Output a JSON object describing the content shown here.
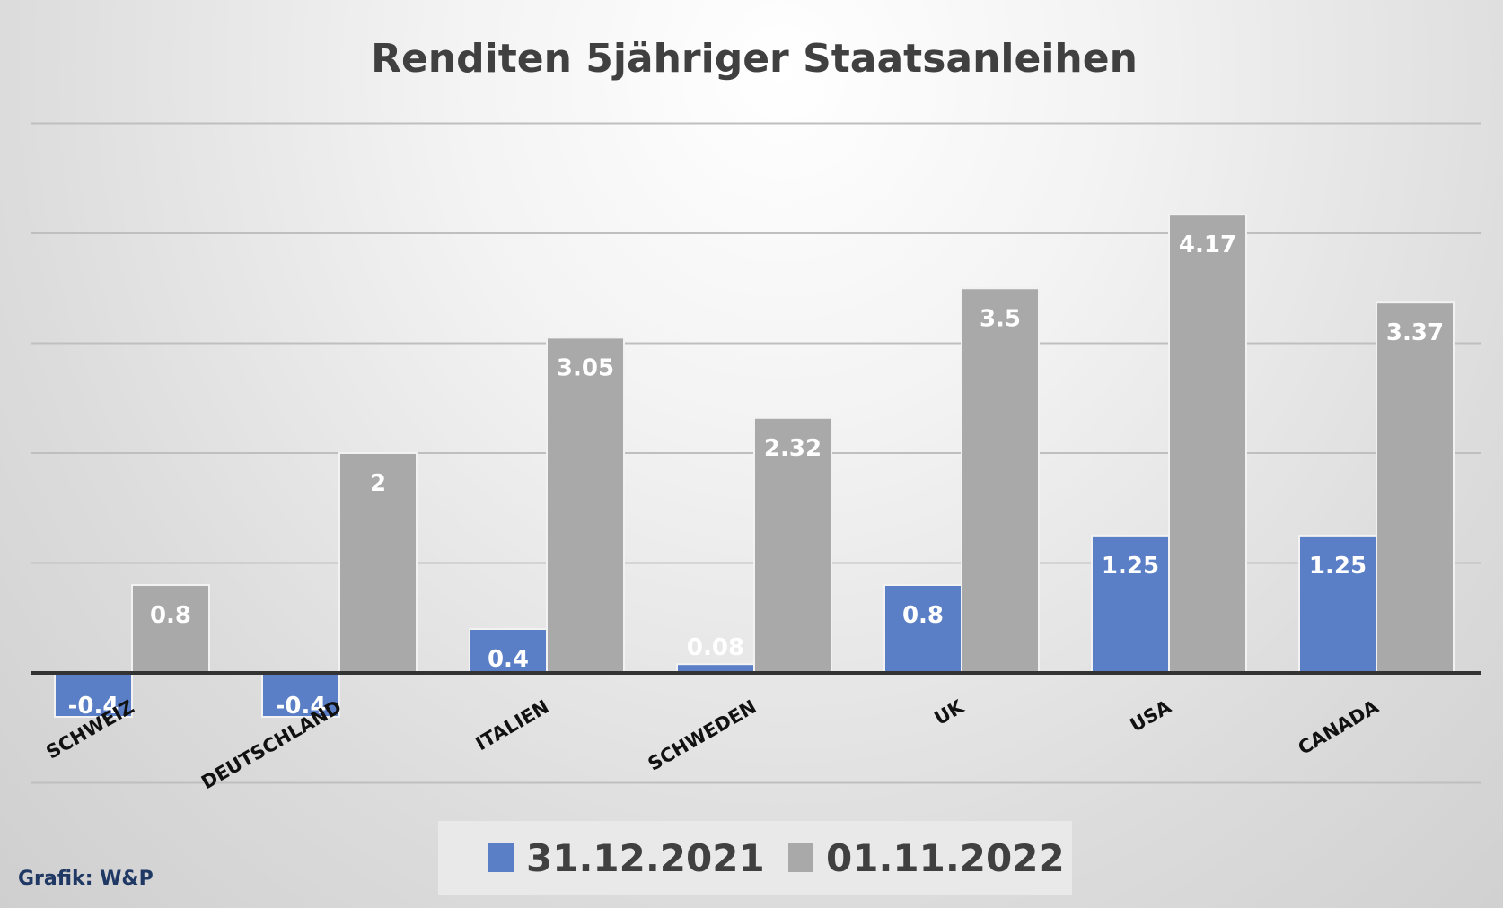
{
  "chart_data": {
    "type": "bar",
    "title": "Renditen 5jähriger Staatsanleihen",
    "categories": [
      "SCHWEIZ",
      "DEUTSCHLAND",
      "ITALIEN",
      "SCHWEDEN",
      "UK",
      "USA",
      "CANADA"
    ],
    "series": [
      {
        "name": "31.12.2021",
        "color": "#5b7fc7",
        "values": [
          -0.4,
          -0.4,
          0.4,
          0.08,
          0.8,
          1.25,
          1.25
        ]
      },
      {
        "name": "01.11.2022",
        "color": "#a9a9a9",
        "values": [
          0.8,
          2,
          3.05,
          2.32,
          3.5,
          4.17,
          3.37
        ]
      }
    ],
    "ylim": [
      -1,
      5
    ],
    "grid": true,
    "legend_position": "bottom"
  },
  "source": "Grafik: W&P"
}
